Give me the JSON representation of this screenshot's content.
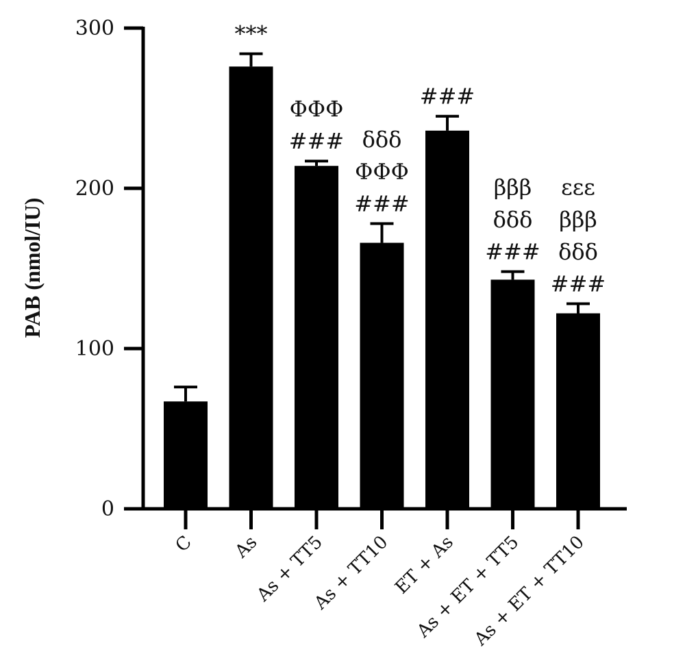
{
  "chart_data": {
    "type": "bar",
    "ylabel": "PAB (nmol/IU)",
    "xlabel": "",
    "ylim": [
      0,
      300
    ],
    "yticks": [
      0,
      100,
      200,
      300
    ],
    "grid": false,
    "categories": [
      "C",
      "As",
      "As + TT5",
      "As + TT10",
      "ET + As",
      "As + ET + TT5",
      "As + ET + TT10"
    ],
    "values": [
      67,
      276,
      214,
      166,
      236,
      143,
      122
    ],
    "errors": [
      9,
      8,
      3,
      12,
      9,
      5,
      6
    ],
    "bar_color": "#000000",
    "significance": [
      [],
      [
        "***"
      ],
      [
        "ΦΦΦ",
        "###"
      ],
      [
        "δδδ",
        "ΦΦΦ",
        "###"
      ],
      [
        "###"
      ],
      [
        "βββ",
        "δδδ",
        "###"
      ],
      [
        "εεε",
        "βββ",
        "δδδ",
        "###"
      ]
    ]
  }
}
